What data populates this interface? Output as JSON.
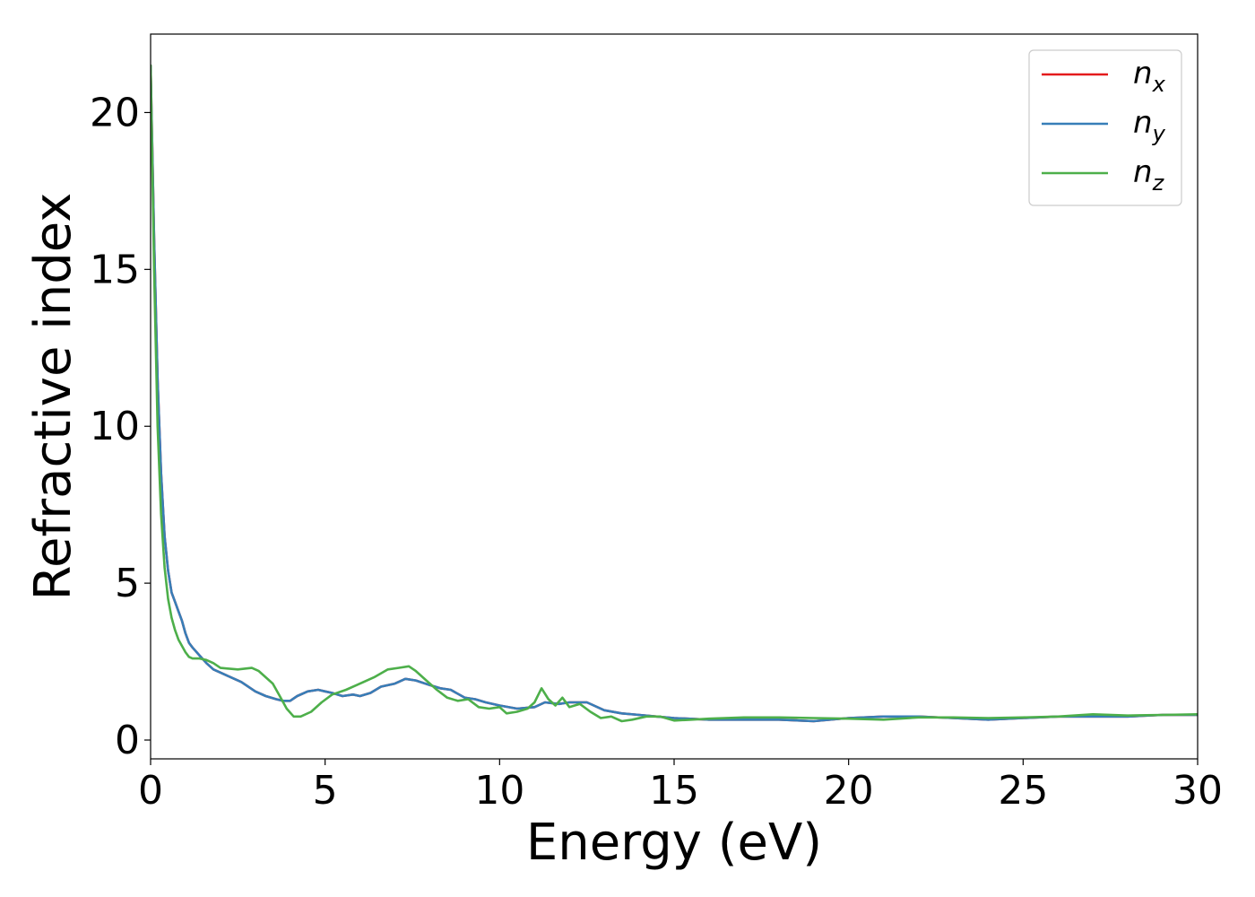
{
  "chart_data": {
    "type": "line",
    "title": "",
    "xlabel": "Energy (eV)",
    "ylabel": "Refractive index",
    "xlim": [
      0,
      30
    ],
    "ylim": [
      -0.6,
      22.5
    ],
    "xticks": [
      "0",
      "5",
      "10",
      "15",
      "20",
      "25",
      "30"
    ],
    "yticks": [
      "0",
      "5",
      "10",
      "15",
      "20"
    ],
    "grid": false,
    "legend_position": "top-right",
    "series": [
      {
        "name": "n_x",
        "legend": {
          "main": "n",
          "sub": "x"
        },
        "color": "#e41a1c",
        "x": [
          0.0,
          0.1,
          0.2,
          0.3,
          0.4,
          0.5,
          0.6,
          0.7,
          0.8,
          0.9,
          1.0,
          1.1,
          1.2,
          1.4,
          1.6,
          1.8,
          2.0,
          2.3,
          2.6,
          3.0,
          3.3,
          3.6,
          3.8,
          4.0,
          4.2,
          4.5,
          4.8,
          5.0,
          5.2,
          5.5,
          5.8,
          6.0,
          6.3,
          6.6,
          7.0,
          7.3,
          7.6,
          8.0,
          8.3,
          8.6,
          9.0,
          9.3,
          9.6,
          10.0,
          10.5,
          11.0,
          11.3,
          11.7,
          12.0,
          12.5,
          13.0,
          13.5,
          14.0,
          14.5,
          15.0,
          16.0,
          17.0,
          18.0,
          19.0,
          20.0,
          21.0,
          22.0,
          23.0,
          24.0,
          25.0,
          26.0,
          27.0,
          28.0,
          29.0,
          30.0
        ],
        "y": [
          21.5,
          16.0,
          11.5,
          8.5,
          6.5,
          5.4,
          4.7,
          4.4,
          4.1,
          3.8,
          3.4,
          3.1,
          2.95,
          2.7,
          2.45,
          2.25,
          2.15,
          2.0,
          1.85,
          1.55,
          1.4,
          1.3,
          1.25,
          1.25,
          1.4,
          1.55,
          1.6,
          1.55,
          1.5,
          1.4,
          1.45,
          1.4,
          1.5,
          1.7,
          1.8,
          1.95,
          1.9,
          1.75,
          1.65,
          1.6,
          1.35,
          1.3,
          1.2,
          1.1,
          1.0,
          1.05,
          1.2,
          1.15,
          1.2,
          1.2,
          0.95,
          0.85,
          0.8,
          0.75,
          0.7,
          0.65,
          0.65,
          0.65,
          0.6,
          0.7,
          0.75,
          0.75,
          0.7,
          0.65,
          0.7,
          0.75,
          0.75,
          0.75,
          0.8,
          0.8
        ]
      },
      {
        "name": "n_y",
        "legend": {
          "main": "n",
          "sub": "y"
        },
        "color": "#377eb8",
        "x": [
          0.0,
          0.1,
          0.2,
          0.3,
          0.4,
          0.5,
          0.6,
          0.7,
          0.8,
          0.9,
          1.0,
          1.1,
          1.2,
          1.4,
          1.6,
          1.8,
          2.0,
          2.3,
          2.6,
          3.0,
          3.3,
          3.6,
          3.8,
          4.0,
          4.2,
          4.5,
          4.8,
          5.0,
          5.2,
          5.5,
          5.8,
          6.0,
          6.3,
          6.6,
          7.0,
          7.3,
          7.6,
          8.0,
          8.3,
          8.6,
          9.0,
          9.3,
          9.6,
          10.0,
          10.5,
          11.0,
          11.3,
          11.7,
          12.0,
          12.5,
          13.0,
          13.5,
          14.0,
          14.5,
          15.0,
          16.0,
          17.0,
          18.0,
          19.0,
          20.0,
          21.0,
          22.0,
          23.0,
          24.0,
          25.0,
          26.0,
          27.0,
          28.0,
          29.0,
          30.0
        ],
        "y": [
          21.5,
          16.0,
          11.5,
          8.5,
          6.5,
          5.4,
          4.7,
          4.4,
          4.1,
          3.8,
          3.4,
          3.1,
          2.95,
          2.7,
          2.45,
          2.25,
          2.15,
          2.0,
          1.85,
          1.55,
          1.4,
          1.3,
          1.25,
          1.25,
          1.4,
          1.55,
          1.6,
          1.55,
          1.5,
          1.4,
          1.45,
          1.4,
          1.5,
          1.7,
          1.8,
          1.95,
          1.9,
          1.75,
          1.65,
          1.6,
          1.35,
          1.3,
          1.2,
          1.1,
          1.0,
          1.05,
          1.2,
          1.15,
          1.2,
          1.2,
          0.95,
          0.85,
          0.8,
          0.75,
          0.7,
          0.65,
          0.65,
          0.65,
          0.6,
          0.7,
          0.75,
          0.75,
          0.7,
          0.65,
          0.7,
          0.75,
          0.75,
          0.75,
          0.8,
          0.8
        ]
      },
      {
        "name": "n_z",
        "legend": {
          "main": "n",
          "sub": "z"
        },
        "color": "#4daf4a",
        "x": [
          0.0,
          0.1,
          0.2,
          0.3,
          0.4,
          0.5,
          0.6,
          0.7,
          0.8,
          0.9,
          1.0,
          1.1,
          1.2,
          1.4,
          1.6,
          1.8,
          2.0,
          2.5,
          2.9,
          3.1,
          3.3,
          3.5,
          3.7,
          3.9,
          4.1,
          4.3,
          4.6,
          4.9,
          5.2,
          5.6,
          6.0,
          6.4,
          6.8,
          7.1,
          7.4,
          7.6,
          7.9,
          8.2,
          8.5,
          8.8,
          9.1,
          9.4,
          9.7,
          10.0,
          10.2,
          10.5,
          10.8,
          11.0,
          11.2,
          11.4,
          11.6,
          11.8,
          12.0,
          12.3,
          12.6,
          12.9,
          13.2,
          13.5,
          13.8,
          14.2,
          14.6,
          15.0,
          15.5,
          16.0,
          17.0,
          18.0,
          19.0,
          20.0,
          21.0,
          22.0,
          23.0,
          24.0,
          25.0,
          26.0,
          27.0,
          28.0,
          29.0,
          30.0
        ],
        "y": [
          21.5,
          15.0,
          10.0,
          7.2,
          5.5,
          4.5,
          3.9,
          3.5,
          3.2,
          3.0,
          2.8,
          2.65,
          2.6,
          2.6,
          2.55,
          2.45,
          2.3,
          2.25,
          2.3,
          2.2,
          2.0,
          1.8,
          1.4,
          1.0,
          0.75,
          0.75,
          0.9,
          1.2,
          1.45,
          1.6,
          1.8,
          2.0,
          2.25,
          2.3,
          2.35,
          2.2,
          1.9,
          1.6,
          1.35,
          1.25,
          1.3,
          1.05,
          1.0,
          1.05,
          0.85,
          0.9,
          1.0,
          1.2,
          1.65,
          1.3,
          1.1,
          1.35,
          1.05,
          1.15,
          0.9,
          0.7,
          0.75,
          0.6,
          0.65,
          0.75,
          0.75,
          0.62,
          0.65,
          0.68,
          0.72,
          0.72,
          0.7,
          0.68,
          0.65,
          0.72,
          0.72,
          0.7,
          0.72,
          0.75,
          0.82,
          0.78,
          0.8,
          0.82
        ]
      }
    ]
  }
}
